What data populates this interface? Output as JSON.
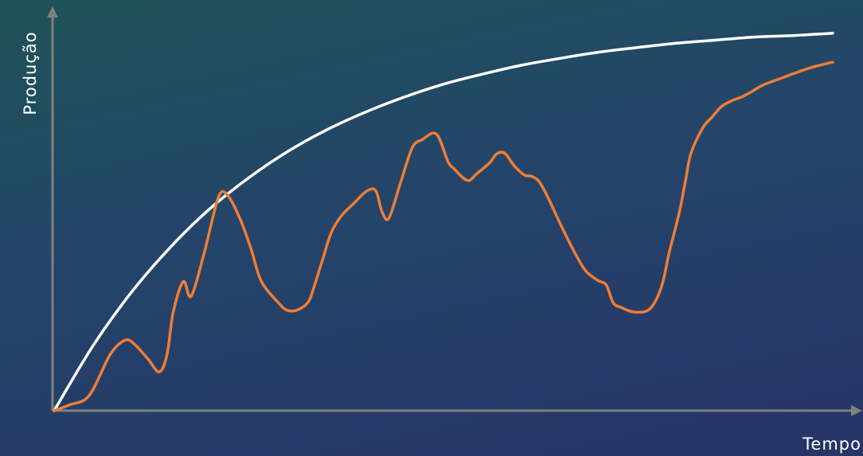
{
  "chart_data": {
    "type": "line",
    "title": "",
    "xlabel": "Tempo",
    "ylabel": "Produção",
    "x_ticks": false,
    "y_ticks": false,
    "grid": false,
    "legend": false,
    "xlim": [
      0,
      100
    ],
    "ylim": [
      0,
      100
    ],
    "colors": {
      "axis": "#808080",
      "ideal": "#ffffff",
      "actual": "#ee7d34"
    },
    "series": [
      {
        "key": "ideal",
        "x": [
          0,
          5,
          10,
          15,
          20,
          25,
          30,
          35,
          40,
          45,
          50,
          55,
          60,
          65,
          70,
          75,
          80,
          85,
          90,
          95,
          100
        ],
        "values": [
          0,
          16.8,
          30.8,
          42.4,
          52.2,
          60.2,
          67,
          72.6,
          77.2,
          81.1,
          84.4,
          87,
          89.3,
          91.1,
          92.7,
          93.9,
          95,
          95.8,
          96.6,
          97,
          97.6
        ]
      },
      {
        "key": "actual",
        "x": [
          0,
          2,
          4.5,
          7.2,
          9.1,
          10.3,
          12,
          13.5,
          14.5,
          15.3,
          16.6,
          17.6,
          19.3,
          21.1,
          22.3,
          23.9,
          25.3,
          26.6,
          28.8,
          30,
          31.3,
          32.6,
          33.3,
          34.7,
          35.6,
          36.9,
          38.5,
          40.1,
          41.3,
          42.1,
          43,
          44.5,
          46,
          47.3,
          49.1,
          50.6,
          51.4,
          52.4,
          53.3,
          54.3,
          55.9,
          56.9,
          57.9,
          59.1,
          60.4,
          61.3,
          62.3,
          63.5,
          65.1,
          66.9,
          68.3,
          69.8,
          70.9,
          71.8,
          72.8,
          74.5,
          76.5,
          78,
          79,
          80.3,
          81.1,
          81.8,
          83.3,
          84.5,
          85.7,
          87,
          88.4,
          89.6,
          90.5,
          91.4,
          92.5,
          93.7,
          94.9,
          96.3,
          97.9,
          100
        ],
        "values": [
          0,
          1.5,
          3.9,
          14.5,
          18.2,
          17.2,
          13.5,
          10,
          14.5,
          25.5,
          33.4,
          29.6,
          41,
          55.2,
          55.6,
          49.5,
          41.8,
          33.5,
          27.9,
          25.9,
          26.1,
          28,
          31.5,
          40.5,
          46.1,
          50.4,
          53.6,
          56.7,
          56.9,
          51.5,
          49.8,
          59,
          68,
          70.1,
          71.5,
          64.3,
          62.5,
          60.4,
          59.5,
          61.3,
          64,
          66.5,
          66.5,
          63.3,
          60.9,
          60.6,
          59.2,
          54.8,
          47.9,
          40.7,
          36.1,
          33.7,
          32.5,
          27.9,
          26.7,
          25.5,
          26.3,
          32,
          40.9,
          51.3,
          59.6,
          66.6,
          73.1,
          75.9,
          78.6,
          80.1,
          81.2,
          82.5,
          83.6,
          84.5,
          85.3,
          86.2,
          87.1,
          88.1,
          89.1,
          90.1
        ]
      }
    ]
  }
}
